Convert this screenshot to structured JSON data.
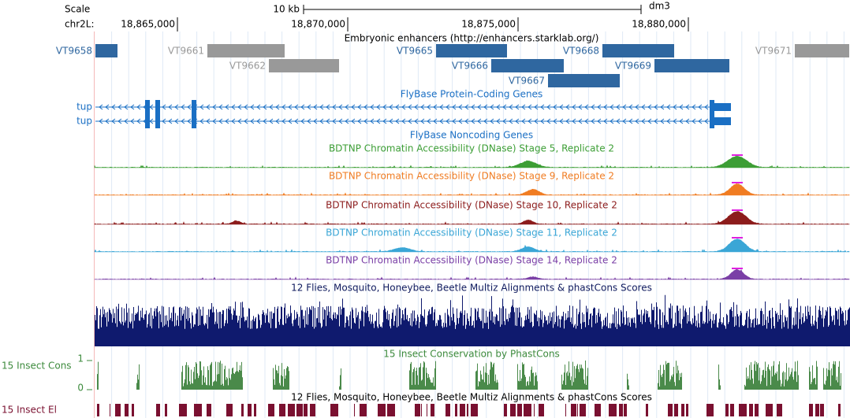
{
  "header": {
    "scale_label": "Scale",
    "scale_bar": "10 kb",
    "assembly": "dm3",
    "chrom": "chr2L:"
  },
  "ruler": {
    "range": [
      18862569,
      18884722
    ],
    "ticks": [
      {
        "value": 18865000,
        "label": "18,865,000"
      },
      {
        "value": 18870000,
        "label": "18,870,000"
      },
      {
        "value": 18875000,
        "label": "18,875,000"
      },
      {
        "value": 18880000,
        "label": "18,880,000"
      }
    ]
  },
  "tracks": {
    "enhancers": {
      "title": "Embryonic enhancers (http://enhancers.starklab.org/)",
      "items": [
        "VT9658",
        "VT9661",
        "VT9662",
        "VT9665",
        "VT9666",
        "VT9667",
        "VT9668",
        "VT9669",
        "VT9671"
      ]
    },
    "genes": {
      "title": "FlyBase Protein-Coding Genes",
      "items": [
        "tup",
        "tup"
      ]
    },
    "noncoding": {
      "title": "FlyBase Noncoding Genes"
    },
    "dnase": [
      {
        "title": "BDTNP Chromatin Accessibility (DNase) Stage 5, Replicate 2",
        "color": "#3c9e35"
      },
      {
        "title": "BDTNP Chromatin Accessibility (DNase) Stage 9, Replicate 2",
        "color": "#f07c22"
      },
      {
        "title": "BDTNP Chromatin Accessibility (DNase) Stage 10, Replicate 2",
        "color": "#8c1c1c"
      },
      {
        "title": "BDTNP Chromatin Accessibility (DNase) Stage 11, Replicate 2",
        "color": "#3aa6d6"
      },
      {
        "title": "BDTNP Chromatin Accessibility (DNase) Stage 14, Replicate 2",
        "color": "#7a3fa6"
      }
    ],
    "multiz": {
      "title": "12 Flies, Mosquito, Honeybee, Beetle Multiz Alignments & phastCons Scores"
    },
    "cons": {
      "title": "15 Insect Conservation by PhastCons",
      "label": "15 Insect Cons",
      "ylim": [
        0,
        1
      ],
      "yticks": [
        0,
        1
      ]
    },
    "elements": {
      "title": "12 Flies, Mosquito, Honeybee, Beetle Multiz Alignments & phastCons Scores",
      "label": "15 Insect El"
    }
  }
}
